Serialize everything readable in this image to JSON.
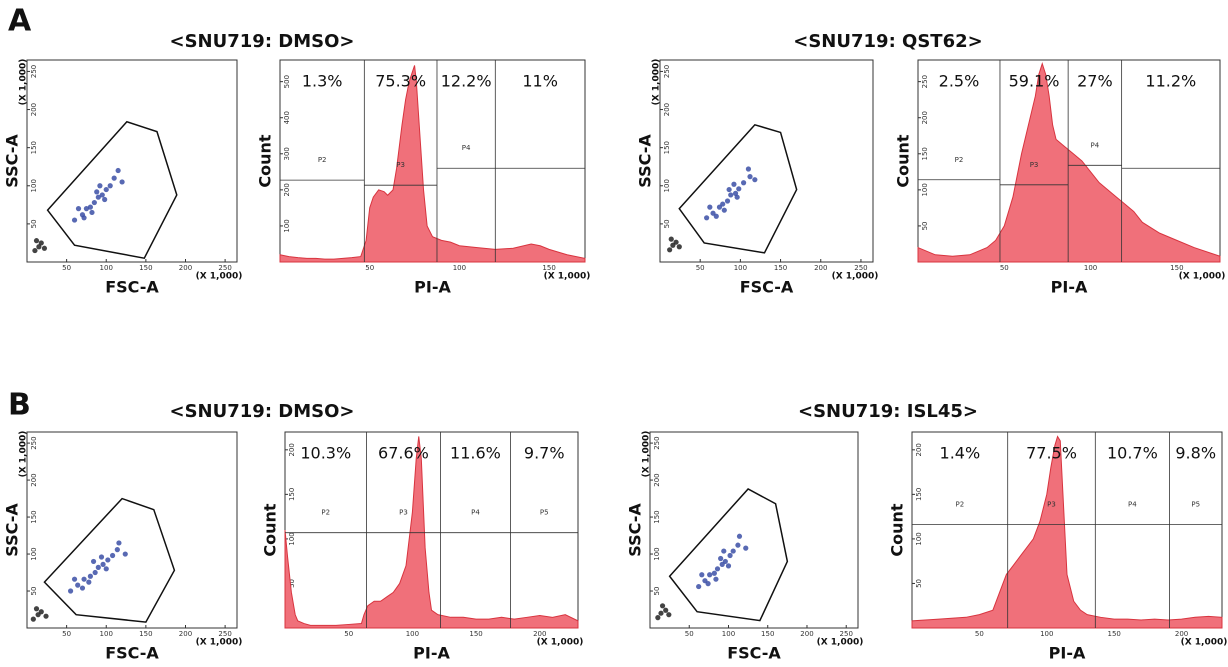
{
  "figure": {
    "panel_labels": [
      "A",
      "B"
    ],
    "titles": [
      "<SNU719: DMSO>",
      "<SNU719: QST62>",
      "<SNU719: DMSO>",
      "<SNU719: ISL45>"
    ]
  },
  "chart_data": [
    {
      "type": "scatter",
      "xlabel": "FSC-A",
      "ylabel": "SSC-A",
      "xunit": "(X 1,000)",
      "yunit": "(X 1,000)",
      "xlim": [
        0,
        265
      ],
      "ylim": [
        0,
        265
      ],
      "xticks": [
        50,
        100,
        150,
        200,
        250
      ],
      "yticks": [
        50,
        100,
        150,
        200,
        250
      ],
      "gate_x": [
        26,
        126,
        164,
        189,
        148,
        60
      ],
      "gate_y": [
        68,
        184,
        171,
        88,
        5,
        22
      ],
      "series": [
        {
          "color": "#3b4fa6",
          "x": [
            60,
            70,
            75,
            80,
            85,
            90,
            95,
            100,
            105,
            110,
            65,
            72,
            88,
            98,
            115,
            120,
            82,
            92
          ],
          "y": [
            55,
            62,
            70,
            72,
            78,
            85,
            88,
            95,
            100,
            110,
            70,
            58,
            92,
            82,
            120,
            105,
            65,
            100
          ]
        },
        {
          "color": "#222222",
          "x": [
            10,
            15,
            18,
            22,
            12
          ],
          "y": [
            15,
            20,
            25,
            18,
            28
          ]
        }
      ]
    },
    {
      "type": "histogram",
      "xlabel": "PI-A",
      "ylabel": "Count",
      "xunit": "(X 1,000)",
      "xlim": [
        0,
        170
      ],
      "ylim": [
        0,
        560
      ],
      "xticks": [
        50,
        100,
        150
      ],
      "yticks": [
        100,
        200,
        300,
        400,
        500
      ],
      "x": [
        0,
        5,
        10,
        15,
        20,
        25,
        30,
        35,
        40,
        45,
        48,
        50,
        52,
        55,
        58,
        60,
        63,
        65,
        68,
        70,
        72,
        74,
        75,
        76,
        78,
        80,
        82,
        85,
        90,
        95,
        100,
        110,
        120,
        130,
        140,
        145,
        150,
        160,
        170
      ],
      "values": [
        20,
        15,
        12,
        10,
        10,
        8,
        8,
        10,
        12,
        15,
        60,
        150,
        180,
        200,
        195,
        185,
        200,
        260,
        380,
        450,
        500,
        530,
        545,
        500,
        350,
        200,
        100,
        70,
        60,
        55,
        45,
        40,
        35,
        38,
        50,
        45,
        35,
        20,
        10
      ],
      "gate_edges": [
        0,
        47,
        87.5,
        120,
        170
      ],
      "gate_levels": [
        227,
        213,
        260,
        260
      ],
      "gate_names": [
        "P2",
        "P3",
        "P4",
        null
      ],
      "gate_values": [
        1.3,
        75.3,
        12.2,
        11
      ],
      "gate_value_labels": [
        "1.3%",
        "75.3%",
        "12.2%",
        "11%"
      ]
    },
    {
      "type": "scatter",
      "xlabel": "FSC-A",
      "ylabel": "SSC-A",
      "xunit": "(X 1,000)",
      "yunit": "(X 1,000)",
      "xlim": [
        0,
        265
      ],
      "ylim": [
        0,
        265
      ],
      "xticks": [
        50,
        100,
        150,
        200,
        250
      ],
      "yticks": [
        50,
        100,
        150,
        200,
        250
      ],
      "gate_x": [
        24,
        118,
        150,
        170,
        130,
        55
      ],
      "gate_y": [
        70,
        180,
        170,
        95,
        12,
        25
      ],
      "series": [
        {
          "color": "#3b4fa6",
          "x": [
            58,
            66,
            74,
            78,
            84,
            88,
            94,
            98,
            104,
            112,
            62,
            70,
            86,
            96,
            110,
            118,
            80,
            92
          ],
          "y": [
            58,
            64,
            72,
            76,
            80,
            88,
            90,
            96,
            104,
            112,
            72,
            60,
            95,
            85,
            122,
            108,
            68,
            102
          ]
        },
        {
          "color": "#222222",
          "x": [
            12,
            16,
            20,
            24,
            14
          ],
          "y": [
            16,
            22,
            26,
            20,
            30
          ]
        }
      ]
    },
    {
      "type": "histogram",
      "xlabel": "PI-A",
      "ylabel": "Count",
      "xunit": "(X 1,000)",
      "xlim": [
        0,
        175
      ],
      "ylim": [
        0,
        280
      ],
      "xticks": [
        50,
        100,
        150
      ],
      "yticks": [
        50,
        100,
        150,
        200,
        250
      ],
      "x": [
        0,
        10,
        20,
        30,
        40,
        45,
        50,
        55,
        60,
        65,
        68,
        70,
        72,
        74,
        76,
        78,
        80,
        85,
        90,
        95,
        100,
        105,
        110,
        115,
        120,
        125,
        130,
        140,
        150,
        160,
        170,
        175
      ],
      "values": [
        20,
        10,
        8,
        10,
        20,
        30,
        50,
        90,
        150,
        200,
        230,
        260,
        275,
        260,
        230,
        190,
        170,
        160,
        150,
        140,
        125,
        110,
        100,
        90,
        80,
        70,
        55,
        40,
        30,
        20,
        12,
        8
      ],
      "gate_edges": [
        0,
        47.5,
        87,
        118,
        175
      ],
      "gate_levels": [
        114,
        107,
        134,
        130
      ],
      "gate_names": [
        "P2",
        "P3",
        "P4",
        null
      ],
      "gate_values": [
        2.5,
        59.1,
        27,
        11.2
      ],
      "gate_value_labels": [
        "2.5%",
        "59.1%",
        "27%",
        "11.2%"
      ]
    },
    {
      "type": "scatter",
      "xlabel": "FSC-A",
      "ylabel": "SSC-A",
      "xunit": "(X 1,000)",
      "yunit": "(X 1,000)",
      "xlim": [
        0,
        265
      ],
      "ylim": [
        0,
        265
      ],
      "xticks": [
        50,
        100,
        150,
        200,
        250
      ],
      "yticks": [
        50,
        100,
        150,
        200,
        250
      ],
      "gate_x": [
        22,
        120,
        160,
        186,
        150,
        62
      ],
      "gate_y": [
        62,
        175,
        160,
        78,
        8,
        18
      ],
      "series": [
        {
          "color": "#3b4fa6",
          "x": [
            55,
            64,
            72,
            80,
            86,
            90,
            96,
            102,
            108,
            114,
            60,
            70,
            84,
            100,
            116,
            124,
            78,
            94
          ],
          "y": [
            50,
            58,
            66,
            70,
            75,
            82,
            86,
            92,
            98,
            106,
            66,
            54,
            90,
            80,
            115,
            100,
            62,
            96
          ]
        },
        {
          "color": "#222222",
          "x": [
            8,
            14,
            18,
            24,
            12
          ],
          "y": [
            12,
            18,
            22,
            16,
            26
          ]
        }
      ]
    },
    {
      "type": "histogram",
      "xlabel": "PI-A",
      "ylabel": "Count",
      "xunit": "(X 1,000)",
      "xlim": [
        0,
        230
      ],
      "ylim": [
        0,
        220
      ],
      "xticks": [
        50,
        100,
        150,
        200
      ],
      "yticks": [
        50,
        100,
        150,
        200
      ],
      "x": [
        0,
        2,
        5,
        8,
        10,
        15,
        20,
        30,
        40,
        50,
        60,
        62,
        65,
        70,
        75,
        80,
        85,
        90,
        95,
        100,
        103,
        105,
        107,
        110,
        113,
        115,
        120,
        130,
        140,
        150,
        160,
        170,
        180,
        190,
        200,
        210,
        220,
        230
      ],
      "values": [
        110,
        80,
        40,
        15,
        8,
        5,
        3,
        3,
        3,
        4,
        5,
        15,
        25,
        30,
        30,
        35,
        40,
        50,
        70,
        130,
        190,
        215,
        190,
        90,
        40,
        20,
        15,
        12,
        12,
        10,
        10,
        12,
        10,
        12,
        14,
        12,
        15,
        8
      ],
      "gate_edges": [
        0,
        64,
        122,
        177,
        230
      ],
      "gate_levels": [
        107,
        107,
        107,
        107
      ],
      "gate_names": [
        "P2",
        "P3",
        "P4",
        "P5"
      ],
      "gate_values": [
        10.3,
        67.6,
        11.6,
        9.7
      ],
      "gate_value_labels": [
        "10.3%",
        "67.6%",
        "11.6%",
        "9.7%"
      ]
    },
    {
      "type": "scatter",
      "xlabel": "FSC-A",
      "ylabel": "SSC-A",
      "xunit": "(X 1,000)",
      "yunit": "(X 1,000)",
      "xlim": [
        0,
        265
      ],
      "ylim": [
        0,
        265
      ],
      "xticks": [
        50,
        100,
        150,
        200,
        250
      ],
      "yticks": [
        50,
        100,
        150,
        200,
        250
      ],
      "gate_x": [
        25,
        125,
        160,
        175,
        140,
        60
      ],
      "gate_y": [
        70,
        188,
        168,
        90,
        10,
        22
      ],
      "series": [
        {
          "color": "#3b4fa6",
          "x": [
            62,
            70,
            76,
            82,
            86,
            92,
            96,
            102,
            106,
            112,
            66,
            74,
            90,
            100,
            114,
            122,
            84,
            94
          ],
          "y": [
            56,
            64,
            72,
            74,
            80,
            86,
            90,
            98,
            104,
            112,
            72,
            60,
            94,
            84,
            124,
            108,
            66,
            104
          ]
        },
        {
          "color": "#222222",
          "x": [
            10,
            14,
            20,
            24,
            16
          ],
          "y": [
            14,
            20,
            24,
            18,
            30
          ]
        }
      ]
    },
    {
      "type": "histogram",
      "xlabel": "PI-A",
      "ylabel": "Count",
      "xunit": "(X 1,000)",
      "xlim": [
        0,
        230
      ],
      "ylim": [
        0,
        220
      ],
      "xticks": [
        50,
        100,
        150,
        200
      ],
      "yticks": [
        50,
        100,
        150,
        200
      ],
      "x": [
        0,
        20,
        40,
        50,
        60,
        65,
        70,
        75,
        80,
        85,
        90,
        95,
        100,
        103,
        106,
        108,
        110,
        112,
        115,
        120,
        125,
        130,
        140,
        150,
        160,
        170,
        180,
        190,
        200,
        210,
        220,
        230
      ],
      "values": [
        8,
        10,
        12,
        15,
        20,
        40,
        60,
        70,
        80,
        90,
        100,
        120,
        150,
        180,
        205,
        215,
        210,
        150,
        60,
        30,
        20,
        15,
        12,
        10,
        10,
        9,
        10,
        9,
        10,
        12,
        13,
        12
      ],
      "gate_edges": [
        0,
        71,
        136,
        191,
        230
      ],
      "gate_levels": [
        116,
        116,
        116,
        116
      ],
      "gate_names": [
        "P2",
        "P3",
        "P4",
        "P5"
      ],
      "gate_values": [
        1.4,
        77.5,
        10.7,
        9.8
      ],
      "gate_value_labels": [
        "1.4%",
        "77.5%",
        "10.7%",
        "9.8%"
      ]
    }
  ]
}
